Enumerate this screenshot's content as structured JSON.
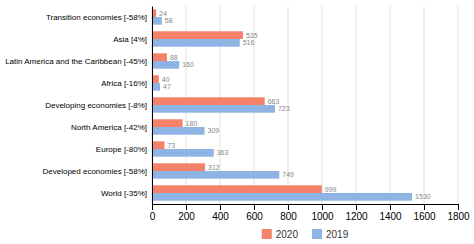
{
  "chart_data": {
    "type": "bar",
    "orientation": "horizontal",
    "categories": [
      "World [-35%]",
      "Developed economies [-58%]",
      "Europe [-80%]",
      "North America [-42%]",
      "Developing economies [-8%]",
      "Africa [-16%]",
      "Latin America and the Caribbean [-45%]",
      "Asia [4%]",
      "Transition economies [-58%]"
    ],
    "series": [
      {
        "name": "2020",
        "color": "#f4816a",
        "values": [
          999,
          312,
          73,
          180,
          663,
          40,
          88,
          535,
          24
        ]
      },
      {
        "name": "2019",
        "color": "#8db4e2",
        "values": [
          1530,
          749,
          363,
          309,
          723,
          47,
          160,
          516,
          58
        ]
      }
    ],
    "xlim": [
      0,
      1800
    ],
    "xticks": [
      0,
      200,
      400,
      600,
      800,
      1000,
      1200,
      1400,
      1600,
      1800
    ],
    "grid": true,
    "data_labels": true,
    "legend": "bottom"
  }
}
